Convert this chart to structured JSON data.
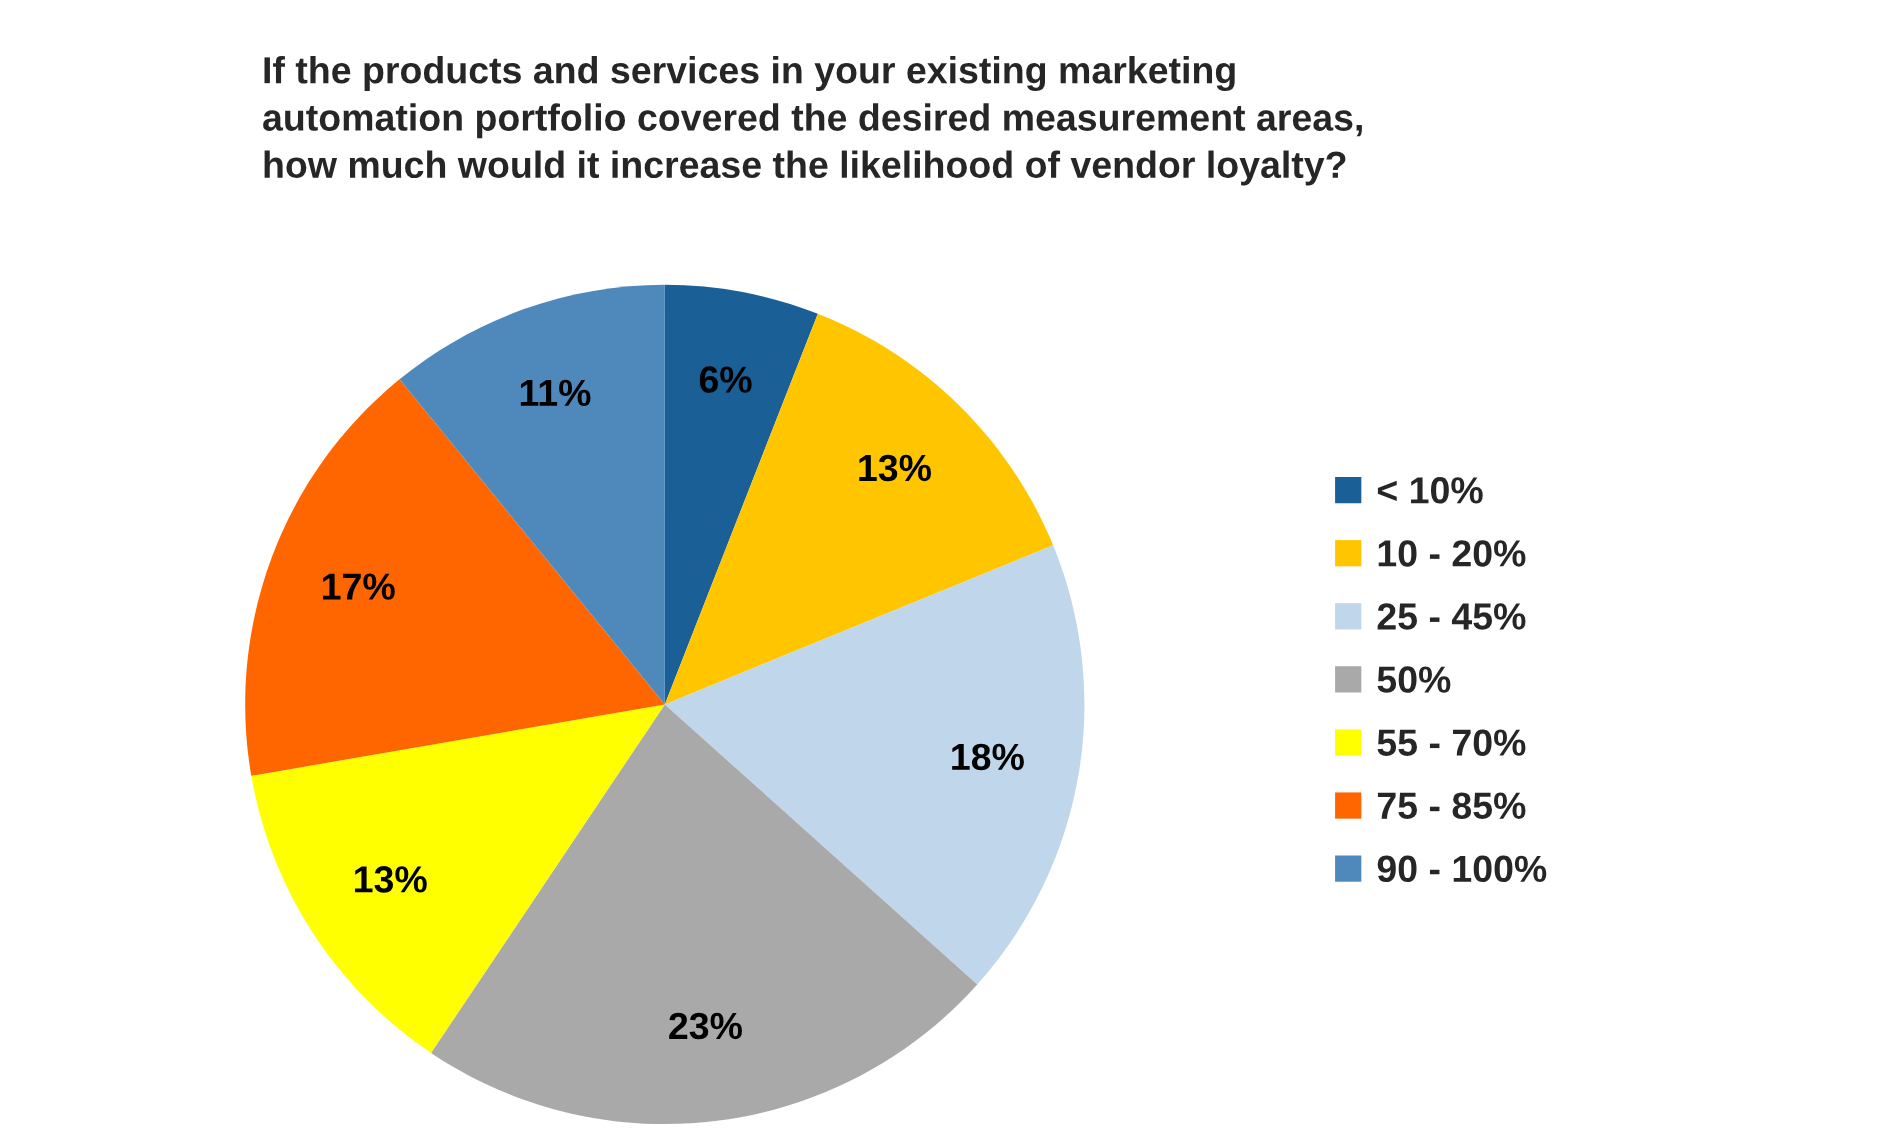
{
  "chart_data": {
    "type": "pie",
    "title": "If the products and services in your existing marketing\nautomation portfolio covered the desired measurement areas,\nhow much would it increase the likelihood of vendor loyalty?",
    "categories": [
      "< 10%",
      "10 - 20%",
      "25 - 45%",
      "50%",
      "55 - 70%",
      "75 - 85%",
      "90 - 100%"
    ],
    "values": [
      6,
      13,
      18,
      23,
      13,
      17,
      11
    ],
    "colors": [
      "#1a5f96",
      "#ffc600",
      "#c0d6ea",
      "#aaa9a9",
      "#ffff00",
      "#ff6600",
      "#4f89bb"
    ],
    "value_labels": [
      "6%",
      "13%",
      "18%",
      "23%",
      "13%",
      "17%",
      "11%"
    ],
    "legend": "right"
  }
}
